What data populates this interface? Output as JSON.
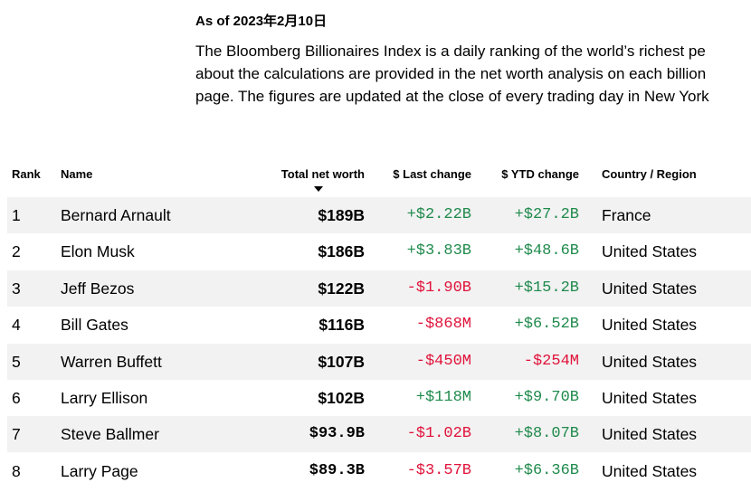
{
  "header": {
    "as_of": "As of 2023年2月10日",
    "description": [
      "The Bloomberg Billionaires Index is a daily ranking of the world’s richest pe",
      "about the calculations are provided in the net worth analysis on each billion",
      "page. The figures are updated at the close of every trading day in New York"
    ]
  },
  "table": {
    "columns": [
      "Rank",
      "Name",
      "Total net worth",
      "$ Last change",
      "$ YTD change",
      "Country / Region"
    ],
    "rows": [
      [
        "1",
        "Bernard Arnault",
        "$189B",
        "+$2.22B",
        "+$27.2B",
        "France"
      ],
      [
        "2",
        "Elon Musk",
        "$186B",
        "+$3.83B",
        "+$48.6B",
        "United States"
      ],
      [
        "3",
        "Jeff Bezos",
        "$122B",
        "-$1.90B",
        "+$15.2B",
        "United States"
      ],
      [
        "4",
        "Bill Gates",
        "$116B",
        "-$868M",
        "+$6.52B",
        "United States"
      ],
      [
        "5",
        "Warren Buffett",
        "$107B",
        "-$450M",
        "-$254M",
        "United States"
      ],
      [
        "6",
        "Larry Ellison",
        "$102B",
        "+$118M",
        "+$9.70B",
        "United States"
      ],
      [
        "7",
        "Steve Ballmer",
        "$93.9B",
        "-$1.02B",
        "+$8.07B",
        "United States"
      ],
      [
        "8",
        "Larry Page",
        "$89.3B",
        "-$3.57B",
        "+$6.36B",
        "United States"
      ]
    ]
  }
}
